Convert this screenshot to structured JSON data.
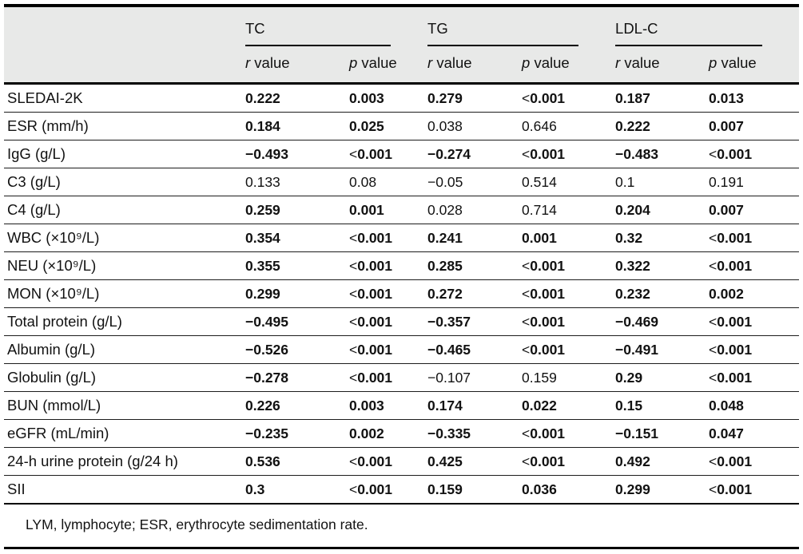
{
  "table": {
    "groups": [
      "TC",
      "TG",
      "LDL-C"
    ],
    "subheaders": {
      "r": {
        "it": "r",
        "rest": " value"
      },
      "p": {
        "it": "p",
        "rest": " value"
      }
    },
    "rows": [
      {
        "label": "SLEDAI-2K",
        "cells": [
          {
            "v": "0.222",
            "b": true
          },
          {
            "v": "0.003",
            "b": true
          },
          {
            "v": "0.279",
            "b": true
          },
          {
            "v": "<0.001",
            "b": true
          },
          {
            "v": "0.187",
            "b": true
          },
          {
            "v": "0.013",
            "b": true
          }
        ]
      },
      {
        "label": "ESR (mm/h)",
        "cells": [
          {
            "v": "0.184",
            "b": true
          },
          {
            "v": "0.025",
            "b": true
          },
          {
            "v": "0.038",
            "b": false
          },
          {
            "v": "0.646",
            "b": false
          },
          {
            "v": "0.222",
            "b": true
          },
          {
            "v": "0.007",
            "b": true
          }
        ]
      },
      {
        "label": "IgG (g/L)",
        "cells": [
          {
            "v": "−0.493",
            "b": true
          },
          {
            "v": "<0.001",
            "b": true
          },
          {
            "v": "−0.274",
            "b": true
          },
          {
            "v": "<0.001",
            "b": true
          },
          {
            "v": "−0.483",
            "b": true
          },
          {
            "v": "<0.001",
            "b": true
          }
        ]
      },
      {
        "label": "C3 (g/L)",
        "cells": [
          {
            "v": "0.133",
            "b": false
          },
          {
            "v": "0.08",
            "b": false
          },
          {
            "v": "−0.05",
            "b": false
          },
          {
            "v": "0.514",
            "b": false
          },
          {
            "v": "0.1",
            "b": false
          },
          {
            "v": "0.191",
            "b": false
          }
        ]
      },
      {
        "label": "C4 (g/L)",
        "cells": [
          {
            "v": "0.259",
            "b": true
          },
          {
            "v": "0.001",
            "b": true
          },
          {
            "v": "0.028",
            "b": false
          },
          {
            "v": "0.714",
            "b": false
          },
          {
            "v": "0.204",
            "b": true
          },
          {
            "v": "0.007",
            "b": true
          }
        ]
      },
      {
        "label": "WBC (×10⁹/L)",
        "cells": [
          {
            "v": "0.354",
            "b": true
          },
          {
            "v": "<0.001",
            "b": true
          },
          {
            "v": "0.241",
            "b": true
          },
          {
            "v": "0.001",
            "b": true
          },
          {
            "v": "0.32",
            "b": true
          },
          {
            "v": "<0.001",
            "b": true
          }
        ]
      },
      {
        "label": "NEU (×10⁹/L)",
        "cells": [
          {
            "v": "0.355",
            "b": true
          },
          {
            "v": "<0.001",
            "b": true
          },
          {
            "v": "0.285",
            "b": true
          },
          {
            "v": "<0.001",
            "b": true
          },
          {
            "v": "0.322",
            "b": true
          },
          {
            "v": "<0.001",
            "b": true
          }
        ]
      },
      {
        "label": "MON (×10⁹/L)",
        "cells": [
          {
            "v": "0.299",
            "b": true
          },
          {
            "v": "<0.001",
            "b": true
          },
          {
            "v": "0.272",
            "b": true
          },
          {
            "v": "<0.001",
            "b": true
          },
          {
            "v": "0.232",
            "b": true
          },
          {
            "v": "0.002",
            "b": true
          }
        ]
      },
      {
        "label": "Total protein (g/L)",
        "cells": [
          {
            "v": "−0.495",
            "b": true
          },
          {
            "v": "<0.001",
            "b": true
          },
          {
            "v": "−0.357",
            "b": true
          },
          {
            "v": "<0.001",
            "b": true
          },
          {
            "v": "−0.469",
            "b": true
          },
          {
            "v": "<0.001",
            "b": true
          }
        ]
      },
      {
        "label": "Albumin (g/L)",
        "cells": [
          {
            "v": "−0.526",
            "b": true
          },
          {
            "v": "<0.001",
            "b": true
          },
          {
            "v": "−0.465",
            "b": true
          },
          {
            "v": "<0.001",
            "b": true
          },
          {
            "v": "−0.491",
            "b": true
          },
          {
            "v": "<0.001",
            "b": true
          }
        ]
      },
      {
        "label": "Globulin (g/L)",
        "cells": [
          {
            "v": "−0.278",
            "b": true
          },
          {
            "v": "<0.001",
            "b": true
          },
          {
            "v": "−0.107",
            "b": false
          },
          {
            "v": "0.159",
            "b": false
          },
          {
            "v": "0.29",
            "b": true
          },
          {
            "v": "<0.001",
            "b": true
          }
        ]
      },
      {
        "label": "BUN (mmol/L)",
        "cells": [
          {
            "v": "0.226",
            "b": true
          },
          {
            "v": "0.003",
            "b": true
          },
          {
            "v": "0.174",
            "b": true
          },
          {
            "v": "0.022",
            "b": true
          },
          {
            "v": "0.15",
            "b": true
          },
          {
            "v": "0.048",
            "b": true
          }
        ]
      },
      {
        "label": "eGFR (mL/min)",
        "cells": [
          {
            "v": "−0.235",
            "b": true
          },
          {
            "v": "0.002",
            "b": true
          },
          {
            "v": "−0.335",
            "b": true
          },
          {
            "v": "<0.001",
            "b": true
          },
          {
            "v": "−0.151",
            "b": true
          },
          {
            "v": "0.047",
            "b": true
          }
        ]
      },
      {
        "label": "24-h urine protein (g/24 h)",
        "cells": [
          {
            "v": "0.536",
            "b": true
          },
          {
            "v": "<0.001",
            "b": true
          },
          {
            "v": "0.425",
            "b": true
          },
          {
            "v": "<0.001",
            "b": true
          },
          {
            "v": "0.492",
            "b": true
          },
          {
            "v": "<0.001",
            "b": true
          }
        ]
      },
      {
        "label": "SII",
        "cells": [
          {
            "v": "0.3",
            "b": true
          },
          {
            "v": "<0.001",
            "b": true
          },
          {
            "v": "0.159",
            "b": true
          },
          {
            "v": "0.036",
            "b": true
          },
          {
            "v": "0.299",
            "b": true
          },
          {
            "v": "<0.001",
            "b": true
          }
        ]
      }
    ]
  },
  "footnote": "LYM, lymphocyte; ESR, erythrocyte sedimentation rate.",
  "colors": {
    "header_bg": "#e8e9e8",
    "text": "#121212",
    "border": "#000000"
  }
}
